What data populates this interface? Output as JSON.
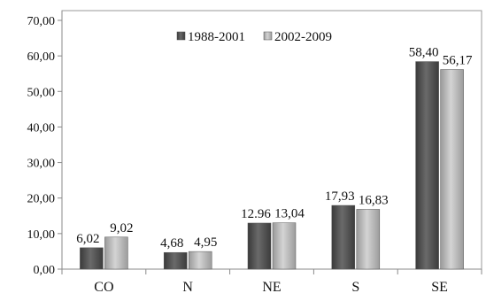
{
  "chart_data": {
    "type": "bar",
    "title": "",
    "xlabel": "",
    "ylabel": "",
    "categories": [
      "CO",
      "N",
      "NE",
      "S",
      "SE"
    ],
    "series": [
      {
        "name": "1988-2001",
        "values": [
          6.02,
          4.68,
          12.96,
          17.93,
          58.4
        ],
        "labels": [
          "6,02",
          "4,68",
          "12.96",
          "17,93",
          "58,40"
        ],
        "color": "#585858"
      },
      {
        "name": "2002-2009",
        "values": [
          9.02,
          4.95,
          13.04,
          16.83,
          56.17
        ],
        "labels": [
          "9,02",
          "4,95",
          "13,04",
          "16,83",
          "56,17"
        ],
        "color": "#b8b8b8"
      }
    ],
    "ylim": [
      0,
      70
    ],
    "yticks": [
      0,
      10,
      20,
      30,
      40,
      50,
      60,
      70
    ],
    "ytick_labels": [
      "0,00",
      "10,00",
      "20,00",
      "30,00",
      "40,00",
      "50,00",
      "60,00",
      "70,00"
    ],
    "legend": "top-center",
    "grid": false
  }
}
